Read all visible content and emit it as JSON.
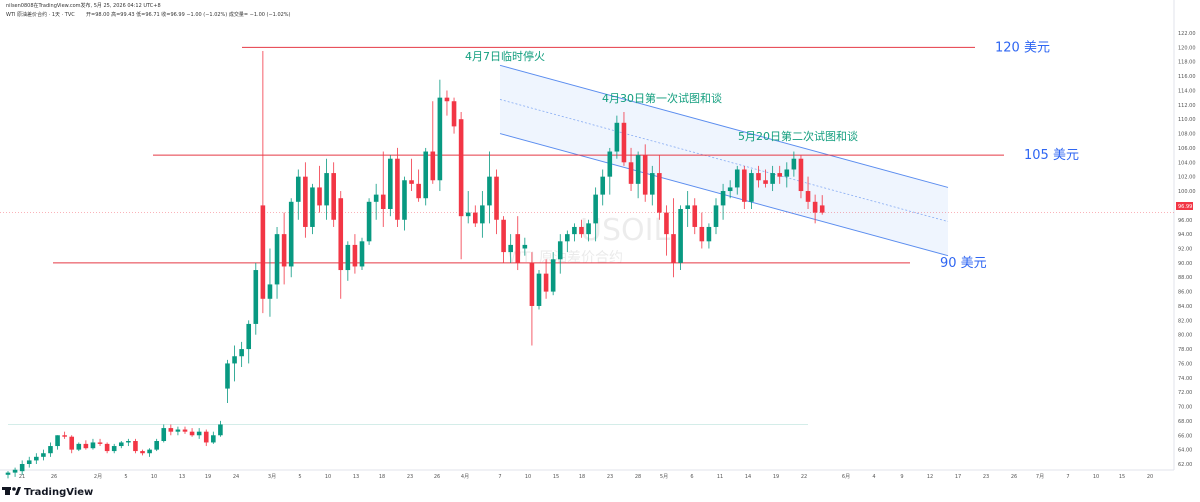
{
  "header": {
    "text": "nilsen0808在TradingView.com发布, 5月 25, 2026 04:12 UTC+8",
    "instrument": "WTI 原油差价合约 · 1天 · TVC",
    "ohlc": "开=98.00  高=99.43  低=96.71  收=96.99  −1.00 (−1.02%)  成交量=  −1.00 (−1.02%)"
  },
  "watermark": {
    "symbol": "USOIL",
    "name": "WTI 原油差价合约"
  },
  "brand": "TradingView",
  "brand_icon": "tradingview-logo-icon",
  "colors": {
    "up": "#089981",
    "down": "#f23645",
    "level_line": "#e53945",
    "level_label": "#2f66f2",
    "annotation": "#129e7e",
    "channel": "#5b8def",
    "channel_fill": "#e8f1fd"
  },
  "chart_data": {
    "type": "candlestick",
    "title": "",
    "ylim": [
      60,
      124
    ],
    "y_ticks": [
      62,
      64,
      66,
      68,
      70,
      72,
      74,
      76,
      78,
      80,
      82,
      84,
      86,
      88,
      90,
      92,
      94,
      96,
      98,
      100,
      102,
      104,
      106,
      108,
      110,
      112,
      114,
      116,
      118,
      120,
      122
    ],
    "x_ticks": [
      "21",
      "26",
      "2月",
      "5",
      "10",
      "13",
      "19",
      "24",
      "3月",
      "5",
      "10",
      "13",
      "18",
      "23",
      "26",
      "4月",
      "7",
      "10",
      "15",
      "18",
      "23",
      "28",
      "5月",
      "6",
      "11",
      "14",
      "19",
      "22",
      "6月",
      "4",
      "9",
      "12",
      "17",
      "23",
      "26",
      "7月",
      "7",
      "10",
      "15",
      "20"
    ],
    "current_price": "96.99",
    "candles": [
      {
        "o": 60.5,
        "h": 61.0,
        "l": 60.0,
        "c": 60.8
      },
      {
        "o": 60.8,
        "h": 61.5,
        "l": 60.2,
        "c": 61.2
      },
      {
        "o": 61.0,
        "h": 62.5,
        "l": 60.5,
        "c": 62.0
      },
      {
        "o": 62.0,
        "h": 63.0,
        "l": 61.5,
        "c": 62.5
      },
      {
        "o": 62.5,
        "h": 63.5,
        "l": 62.0,
        "c": 63.0
      },
      {
        "o": 63.0,
        "h": 64.0,
        "l": 62.5,
        "c": 63.5
      },
      {
        "o": 63.5,
        "h": 65.0,
        "l": 63.0,
        "c": 64.5
      },
      {
        "o": 64.5,
        "h": 66.0,
        "l": 64.0,
        "c": 66.0
      },
      {
        "o": 66.0,
        "h": 66.5,
        "l": 65.5,
        "c": 65.8
      },
      {
        "o": 65.8,
        "h": 66.0,
        "l": 63.5,
        "c": 64.0
      },
      {
        "o": 64.0,
        "h": 65.0,
        "l": 63.8,
        "c": 64.8
      },
      {
        "o": 64.8,
        "h": 65.3,
        "l": 64.0,
        "c": 64.2
      },
      {
        "o": 64.2,
        "h": 65.5,
        "l": 64.0,
        "c": 65.0
      },
      {
        "o": 65.0,
        "h": 65.5,
        "l": 64.5,
        "c": 64.8
      },
      {
        "o": 64.8,
        "h": 65.0,
        "l": 63.5,
        "c": 63.8
      },
      {
        "o": 63.8,
        "h": 64.8,
        "l": 63.5,
        "c": 64.5
      },
      {
        "o": 64.5,
        "h": 65.2,
        "l": 64.2,
        "c": 65.0
      },
      {
        "o": 65.0,
        "h": 65.5,
        "l": 64.5,
        "c": 65.2
      },
      {
        "o": 65.2,
        "h": 65.5,
        "l": 63.5,
        "c": 63.8
      },
      {
        "o": 63.8,
        "h": 64.0,
        "l": 63.2,
        "c": 63.5
      },
      {
        "o": 63.5,
        "h": 64.2,
        "l": 63.0,
        "c": 64.0
      },
      {
        "o": 64.0,
        "h": 65.5,
        "l": 63.8,
        "c": 65.2
      },
      {
        "o": 65.2,
        "h": 67.5,
        "l": 65.0,
        "c": 67.0
      },
      {
        "o": 67.0,
        "h": 67.5,
        "l": 66.0,
        "c": 66.5
      },
      {
        "o": 66.5,
        "h": 67.2,
        "l": 66.0,
        "c": 66.8
      },
      {
        "o": 66.8,
        "h": 67.2,
        "l": 66.2,
        "c": 66.5
      },
      {
        "o": 66.5,
        "h": 67.0,
        "l": 65.8,
        "c": 66.0
      },
      {
        "o": 66.0,
        "h": 67.0,
        "l": 65.5,
        "c": 66.5
      },
      {
        "o": 66.5,
        "h": 66.8,
        "l": 64.5,
        "c": 65.0
      },
      {
        "o": 65.0,
        "h": 66.5,
        "l": 64.8,
        "c": 66.0
      },
      {
        "o": 66.0,
        "h": 68.0,
        "l": 65.8,
        "c": 67.5
      },
      {
        "o": 72.5,
        "h": 76.5,
        "l": 70.5,
        "c": 76.0
      },
      {
        "o": 76.0,
        "h": 78.5,
        "l": 73.5,
        "c": 77.0
      },
      {
        "o": 77.0,
        "h": 79.0,
        "l": 75.5,
        "c": 78.0
      },
      {
        "o": 78.0,
        "h": 82.0,
        "l": 76.0,
        "c": 81.5
      },
      {
        "o": 81.5,
        "h": 90.0,
        "l": 80.0,
        "c": 89.0
      },
      {
        "o": 98.0,
        "h": 119.5,
        "l": 83.0,
        "c": 85.0
      },
      {
        "o": 85.0,
        "h": 92.0,
        "l": 82.5,
        "c": 87.0
      },
      {
        "o": 87.0,
        "h": 95.0,
        "l": 85.0,
        "c": 94.0
      },
      {
        "o": 94.0,
        "h": 97.0,
        "l": 87.0,
        "c": 89.5
      },
      {
        "o": 89.5,
        "h": 99.0,
        "l": 88.0,
        "c": 98.5
      },
      {
        "o": 98.5,
        "h": 103.0,
        "l": 96.0,
        "c": 102.0
      },
      {
        "o": 102.0,
        "h": 104.0,
        "l": 93.5,
        "c": 95.0
      },
      {
        "o": 95.0,
        "h": 101.0,
        "l": 94.0,
        "c": 100.5
      },
      {
        "o": 100.5,
        "h": 103.5,
        "l": 97.0,
        "c": 98.0
      },
      {
        "o": 98.0,
        "h": 104.5,
        "l": 96.0,
        "c": 102.5
      },
      {
        "o": 102.5,
        "h": 104.0,
        "l": 95.0,
        "c": 96.0
      },
      {
        "o": 99.0,
        "h": 100.0,
        "l": 85.0,
        "c": 89.0
      },
      {
        "o": 89.0,
        "h": 93.0,
        "l": 87.5,
        "c": 92.5
      },
      {
        "o": 92.5,
        "h": 94.0,
        "l": 88.5,
        "c": 89.5
      },
      {
        "o": 89.5,
        "h": 93.5,
        "l": 89.0,
        "c": 93.0
      },
      {
        "o": 93.0,
        "h": 99.0,
        "l": 92.5,
        "c": 98.5
      },
      {
        "o": 98.5,
        "h": 101.0,
        "l": 96.0,
        "c": 99.5
      },
      {
        "o": 99.5,
        "h": 105.5,
        "l": 95.0,
        "c": 97.5
      },
      {
        "o": 97.5,
        "h": 105.0,
        "l": 96.5,
        "c": 104.5
      },
      {
        "o": 104.5,
        "h": 106.0,
        "l": 95.0,
        "c": 96.0
      },
      {
        "o": 96.0,
        "h": 102.0,
        "l": 94.5,
        "c": 101.5
      },
      {
        "o": 101.5,
        "h": 104.5,
        "l": 100.0,
        "c": 101.0
      },
      {
        "o": 101.0,
        "h": 103.0,
        "l": 98.5,
        "c": 99.0
      },
      {
        "o": 99.0,
        "h": 106.0,
        "l": 98.0,
        "c": 105.5
      },
      {
        "o": 105.5,
        "h": 112.5,
        "l": 101.0,
        "c": 101.5
      },
      {
        "o": 101.5,
        "h": 115.5,
        "l": 100.0,
        "c": 113.0
      },
      {
        "o": 113.0,
        "h": 114.0,
        "l": 110.5,
        "c": 112.5
      },
      {
        "o": 112.5,
        "h": 113.0,
        "l": 108.0,
        "c": 109.0
      },
      {
        "o": 110.0,
        "h": 111.0,
        "l": 90.5,
        "c": 96.5
      },
      {
        "o": 96.5,
        "h": 100.0,
        "l": 95.5,
        "c": 97.0
      },
      {
        "o": 97.0,
        "h": 98.0,
        "l": 95.0,
        "c": 95.5
      },
      {
        "o": 95.5,
        "h": 100.0,
        "l": 93.5,
        "c": 98.0
      },
      {
        "o": 98.0,
        "h": 105.5,
        "l": 95.5,
        "c": 102.0
      },
      {
        "o": 102.0,
        "h": 103.0,
        "l": 94.0,
        "c": 96.0
      },
      {
        "o": 96.0,
        "h": 96.5,
        "l": 90.0,
        "c": 91.5
      },
      {
        "o": 91.5,
        "h": 94.0,
        "l": 90.0,
        "c": 92.5
      },
      {
        "o": 94.0,
        "h": 96.5,
        "l": 89.0,
        "c": 90.0
      },
      {
        "o": 92.0,
        "h": 93.5,
        "l": 91.0,
        "c": 92.5
      },
      {
        "o": 90.0,
        "h": 91.5,
        "l": 78.5,
        "c": 84.0
      },
      {
        "o": 84.0,
        "h": 89.0,
        "l": 83.5,
        "c": 88.5
      },
      {
        "o": 88.5,
        "h": 90.5,
        "l": 85.0,
        "c": 86.0
      },
      {
        "o": 86.0,
        "h": 91.5,
        "l": 85.5,
        "c": 90.5
      },
      {
        "o": 90.5,
        "h": 94.0,
        "l": 88.5,
        "c": 93.0
      },
      {
        "o": 93.0,
        "h": 94.5,
        "l": 91.5,
        "c": 94.0
      },
      {
        "o": 94.0,
        "h": 95.5,
        "l": 93.0,
        "c": 95.0
      },
      {
        "o": 95.0,
        "h": 96.0,
        "l": 93.5,
        "c": 94.0
      },
      {
        "o": 94.0,
        "h": 96.0,
        "l": 93.0,
        "c": 95.5
      },
      {
        "o": 95.5,
        "h": 100.5,
        "l": 93.0,
        "c": 99.5
      },
      {
        "o": 99.5,
        "h": 103.0,
        "l": 98.0,
        "c": 102.0
      },
      {
        "o": 102.0,
        "h": 106.0,
        "l": 99.5,
        "c": 105.5
      },
      {
        "o": 105.5,
        "h": 110.5,
        "l": 104.5,
        "c": 109.5
      },
      {
        "o": 109.5,
        "h": 111.0,
        "l": 103.5,
        "c": 104.0
      },
      {
        "o": 104.0,
        "h": 106.0,
        "l": 100.0,
        "c": 101.0
      },
      {
        "o": 101.0,
        "h": 105.5,
        "l": 99.0,
        "c": 105.0
      },
      {
        "o": 105.0,
        "h": 106.5,
        "l": 98.5,
        "c": 99.5
      },
      {
        "o": 99.5,
        "h": 103.5,
        "l": 98.0,
        "c": 102.5
      },
      {
        "o": 102.5,
        "h": 105.0,
        "l": 96.0,
        "c": 97.0
      },
      {
        "o": 97.0,
        "h": 98.0,
        "l": 91.0,
        "c": 94.0
      },
      {
        "o": 94.0,
        "h": 99.0,
        "l": 88.0,
        "c": 90.0
      },
      {
        "o": 90.0,
        "h": 98.0,
        "l": 89.0,
        "c": 97.5
      },
      {
        "o": 97.5,
        "h": 100.0,
        "l": 95.0,
        "c": 98.0
      },
      {
        "o": 98.0,
        "h": 99.0,
        "l": 94.0,
        "c": 95.0
      },
      {
        "o": 95.0,
        "h": 97.0,
        "l": 92.0,
        "c": 93.0
      },
      {
        "o": 93.0,
        "h": 95.5,
        "l": 92.0,
        "c": 95.0
      },
      {
        "o": 95.0,
        "h": 99.0,
        "l": 94.0,
        "c": 98.0
      },
      {
        "o": 98.0,
        "h": 101.0,
        "l": 96.0,
        "c": 100.0
      },
      {
        "o": 100.0,
        "h": 101.5,
        "l": 99.0,
        "c": 100.5
      },
      {
        "o": 100.5,
        "h": 103.5,
        "l": 99.5,
        "c": 103.0
      },
      {
        "o": 103.0,
        "h": 103.5,
        "l": 97.5,
        "c": 98.5
      },
      {
        "o": 98.5,
        "h": 103.0,
        "l": 97.5,
        "c": 102.5
      },
      {
        "o": 102.5,
        "h": 103.5,
        "l": 100.5,
        "c": 101.5
      },
      {
        "o": 101.5,
        "h": 103.0,
        "l": 100.5,
        "c": 101.0
      },
      {
        "o": 101.0,
        "h": 103.5,
        "l": 100.0,
        "c": 102.5
      },
      {
        "o": 102.5,
        "h": 103.5,
        "l": 101.0,
        "c": 102.0
      },
      {
        "o": 102.0,
        "h": 104.0,
        "l": 100.5,
        "c": 103.0
      },
      {
        "o": 103.0,
        "h": 105.5,
        "l": 102.0,
        "c": 104.5
      },
      {
        "o": 104.5,
        "h": 105.0,
        "l": 99.0,
        "c": 100.0
      },
      {
        "o": 100.0,
        "h": 102.0,
        "l": 97.5,
        "c": 98.5
      },
      {
        "o": 98.5,
        "h": 99.5,
        "l": 95.5,
        "c": 97.0
      },
      {
        "o": 98.0,
        "h": 99.43,
        "l": 96.71,
        "c": 96.99
      }
    ],
    "levels": [
      {
        "value": 120,
        "label": "120 美元"
      },
      {
        "value": 105,
        "label": "105 美元"
      },
      {
        "value": 90,
        "label": "90 美元"
      }
    ],
    "annotations": [
      {
        "text": "4月7日临时停火"
      },
      {
        "text": "4月30日第一次试图和谈"
      },
      {
        "text": "5月20日第二次试图和谈"
      }
    ]
  }
}
